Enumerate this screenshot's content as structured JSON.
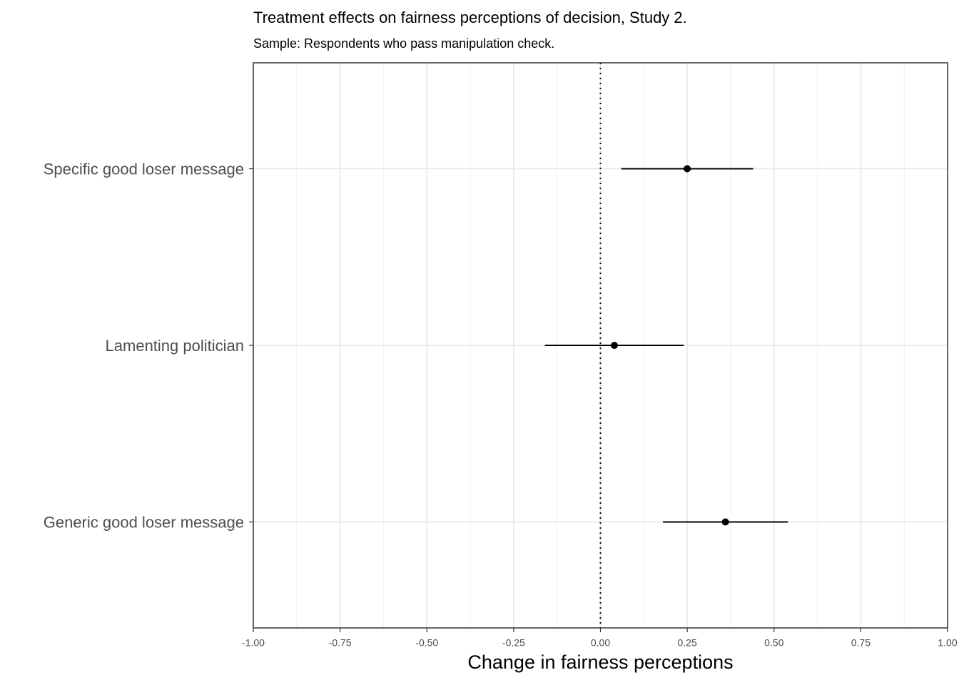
{
  "chart_data": {
    "type": "coefficient",
    "title": "Treatment effects on fairness perceptions of decision, Study 2.",
    "subtitle": "Sample: Respondents who pass manipulation check.",
    "x_label": "Change in fairness perceptions",
    "categories": [
      "Specific good loser message",
      "Lamenting politician",
      "Generic good loser message"
    ],
    "values": [
      0.25,
      0.04,
      0.36
    ],
    "lower": [
      0.06,
      -0.16,
      0.18
    ],
    "upper": [
      0.44,
      0.24,
      0.54
    ],
    "color": "#000000",
    "reference_line": 0,
    "xlim": [
      -1,
      1
    ],
    "xticks": [
      {
        "value": -1,
        "label": "-1.00"
      },
      {
        "value": -0.75,
        "label": "-0.75"
      },
      {
        "value": -0.5,
        "label": "-0.50"
      },
      {
        "value": -0.25,
        "label": "-0.25"
      },
      {
        "value": 0,
        "label": "0.00"
      },
      {
        "value": 0.25,
        "label": "0.25"
      },
      {
        "value": 0.5,
        "label": "0.50"
      },
      {
        "value": 0.75,
        "label": "0.75"
      },
      {
        "value": 1,
        "label": "1.00"
      }
    ],
    "grid": true
  }
}
